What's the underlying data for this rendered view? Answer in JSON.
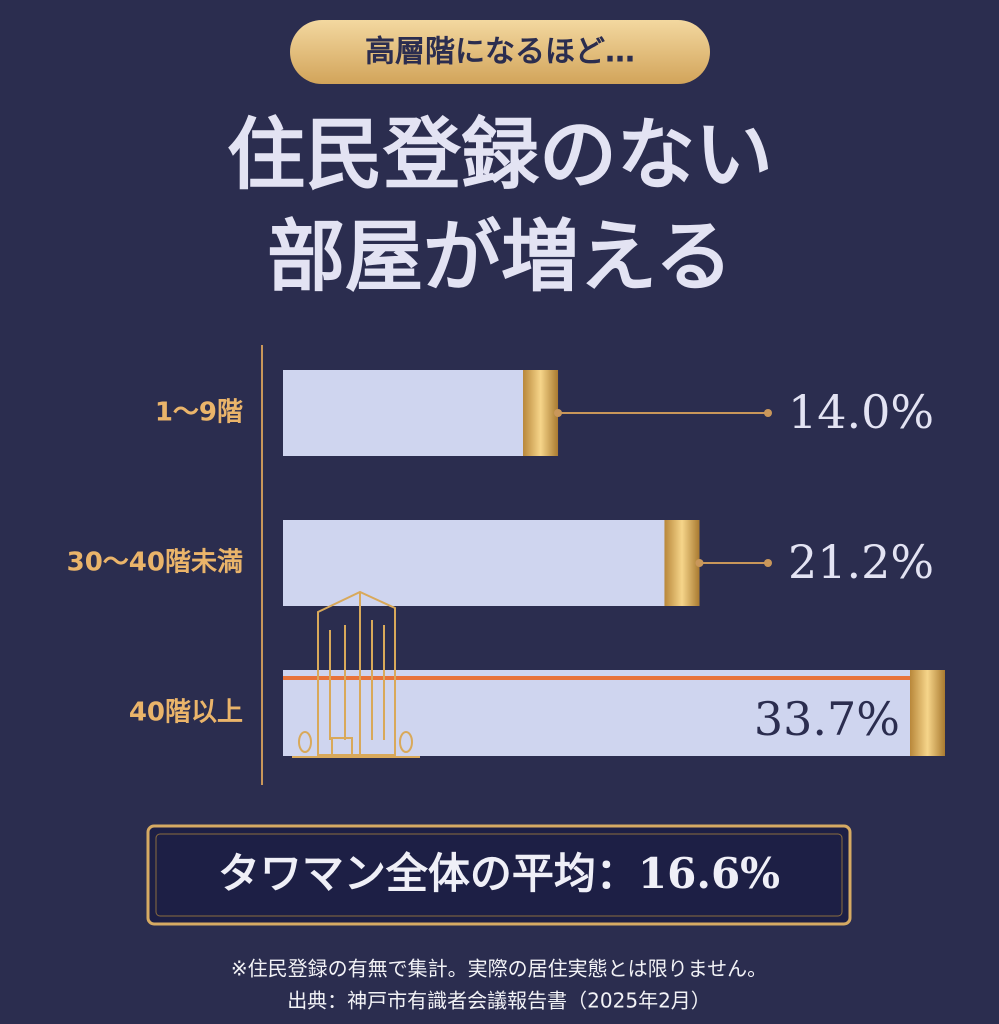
{
  "chart_data": {
    "type": "bar",
    "badge": "高層階になるほど…",
    "title_lines": [
      "住民登録のない",
      "部屋が増える"
    ],
    "categories": [
      "1〜9階",
      "30〜40階未満",
      "40階以上"
    ],
    "values": [
      14.0,
      21.2,
      33.7
    ],
    "value_labels": [
      "14.0%",
      "21.2%",
      "33.7%"
    ],
    "color": "#cfd5ef",
    "average_text": "タワマン全体の平均：16.6%",
    "notes": [
      "※住民登録の有無で集計。実際の居住実態とは限りません。",
      "出典：神戸市有識者会議報告書（2025年2月）"
    ]
  }
}
